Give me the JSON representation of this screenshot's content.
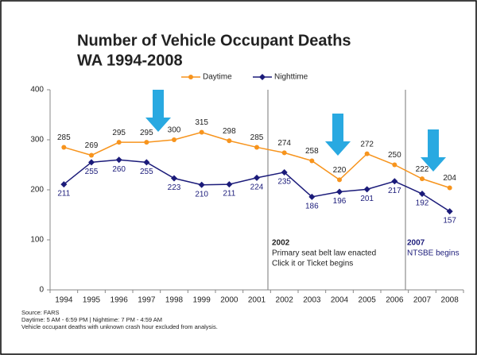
{
  "chart_data": {
    "type": "line",
    "title": "Number of Vehicle Occupant Deaths",
    "subtitle": "WA 1994-2008",
    "categories": [
      "1994",
      "1995",
      "1996",
      "1997",
      "1998",
      "1999",
      "2000",
      "2001",
      "2002",
      "2003",
      "2004",
      "2005",
      "2006",
      "2007",
      "2008"
    ],
    "series": [
      {
        "name": "Daytime",
        "color": "#f7941d",
        "values": [
          285,
          269,
          295,
          295,
          300,
          315,
          298,
          285,
          274,
          258,
          220,
          272,
          250,
          222,
          204
        ]
      },
      {
        "name": "Nighttime",
        "color": "#1b1b7a",
        "values": [
          211,
          255,
          260,
          255,
          223,
          210,
          211,
          224,
          235,
          186,
          196,
          201,
          217,
          192,
          157
        ]
      }
    ],
    "ylim": [
      0,
      400
    ],
    "yticks": [
      0,
      100,
      200,
      300,
      400
    ],
    "annotations": [
      "2002",
      "Primary seat belt law enacted",
      "Click it or Ticket begins",
      "2007",
      "NTSBE begins"
    ],
    "source_notes": [
      "Source: FARS",
      "Daytime: 5 AM - 6:59 PM | Nighttime: 7 PM - 4:59 AM",
      "Vehicle occupant deaths with unknown crash hour excluded from analysis."
    ]
  }
}
